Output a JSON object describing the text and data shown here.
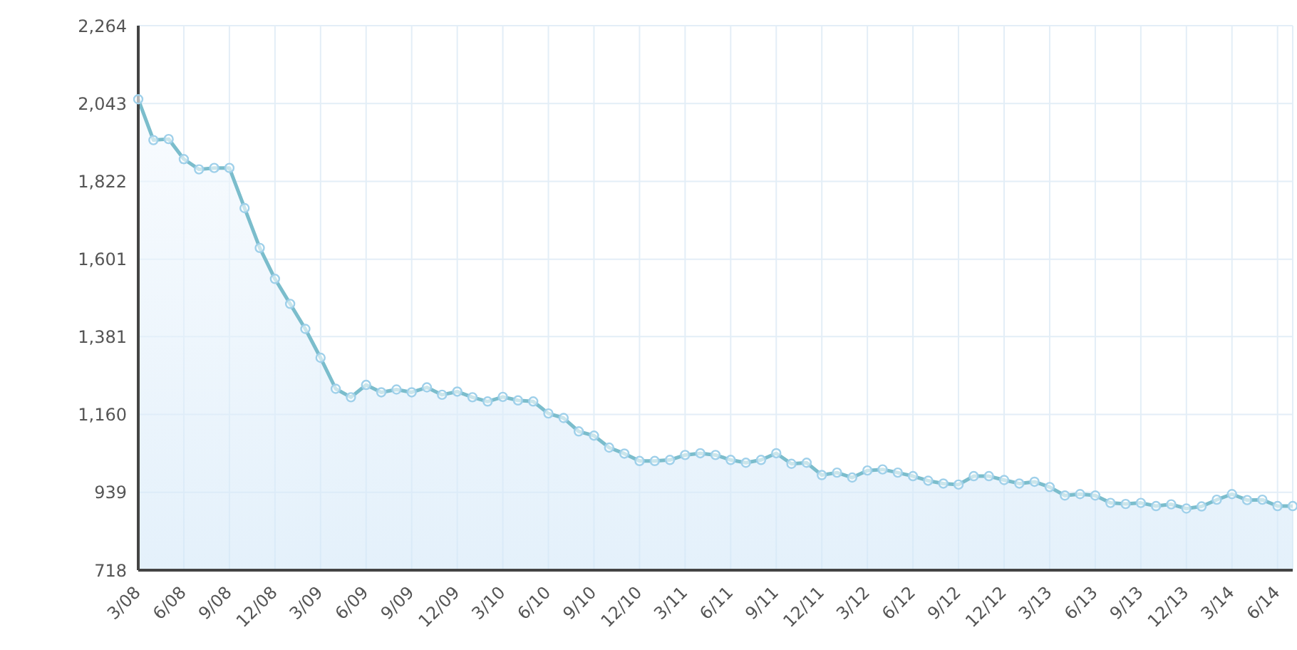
{
  "chart_data": {
    "type": "area",
    "categories": [
      "3/08",
      null,
      null,
      "6/08",
      null,
      null,
      "9/08",
      null,
      null,
      "12/08",
      null,
      null,
      "3/09",
      null,
      null,
      "6/09",
      null,
      null,
      "9/09",
      null,
      null,
      "12/09",
      null,
      null,
      "3/10",
      null,
      null,
      "6/10",
      null,
      null,
      "9/10",
      null,
      null,
      "12/10",
      null,
      null,
      "3/11",
      null,
      null,
      "6/11",
      null,
      null,
      "9/11",
      null,
      null,
      "12/11",
      null,
      null,
      "3/12",
      null,
      null,
      "6/12",
      null,
      null,
      "9/12",
      null,
      null,
      "12/12",
      null,
      null,
      "3/13",
      null,
      null,
      "6/13",
      null,
      null,
      "9/13",
      null,
      null,
      "12/13",
      null,
      null,
      "3/14",
      null,
      null,
      "6/14",
      null
    ],
    "series": [
      {
        "color": "#7bbdcc",
        "values": [
          2055,
          1939,
          1942,
          1885,
          1856,
          1860,
          1860,
          1746,
          1633,
          1545,
          1474,
          1403,
          1321,
          1233,
          1209,
          1244,
          1223,
          1231,
          1223,
          1237,
          1216,
          1225,
          1209,
          1197,
          1210,
          1200,
          1197,
          1163,
          1150,
          1112,
          1100,
          1066,
          1049,
          1028,
          1028,
          1031,
          1045,
          1050,
          1045,
          1031,
          1023,
          1031,
          1050,
          1020,
          1023,
          988,
          995,
          981,
          1001,
          1004,
          995,
          985,
          972,
          964,
          961,
          985,
          985,
          974,
          964,
          969,
          954,
          930,
          934,
          930,
          909,
          906,
          909,
          900,
          905,
          893,
          899,
          918,
          934,
          917,
          918,
          900,
          900
        ]
      }
    ],
    "ylim": [
      718,
      2264
    ],
    "yticks": [
      {
        "value": 718,
        "label": "718"
      },
      {
        "value": 939,
        "label": "939"
      },
      {
        "value": 1160,
        "label": "1,160"
      },
      {
        "value": 1381,
        "label": "1,381"
      },
      {
        "value": 1601,
        "label": "1,601"
      },
      {
        "value": 1822,
        "label": "1,822"
      },
      {
        "value": 2043,
        "label": "2,043"
      },
      {
        "value": 2264,
        "label": "2,264"
      }
    ],
    "grid": true,
    "marker": "circle"
  }
}
